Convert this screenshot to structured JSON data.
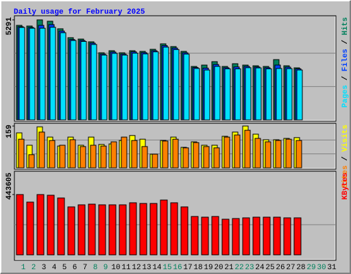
{
  "chart_data": [
    {
      "type": "bar",
      "title": "Daily usage for February 2025",
      "ylim": [
        0,
        5291
      ],
      "yticks": [
        5291
      ],
      "series": [
        {
          "name": "Hits",
          "color": "#00805c",
          "values": [
            5001,
            4965,
            5291,
            5219,
            4820,
            4349,
            4276,
            4131,
            3551,
            3660,
            3551,
            3660,
            3624,
            3733,
            4023,
            3878,
            3624,
            2827,
            2899,
            3080,
            2827,
            2972,
            2899,
            2863,
            2827,
            3189,
            2863,
            2754,
            null,
            null,
            null
          ]
        },
        {
          "name": "Files",
          "color": "#0040ff",
          "values": [
            4930,
            4890,
            5000,
            5040,
            4700,
            4250,
            4200,
            4060,
            3480,
            3590,
            3480,
            3600,
            3560,
            3660,
            3930,
            3800,
            3550,
            2770,
            2740,
            2930,
            2760,
            2800,
            2830,
            2800,
            2760,
            2900,
            2790,
            2700,
            null,
            null,
            null
          ]
        },
        {
          "name": "Pages",
          "color": "#00e0ff",
          "values": [
            4890,
            4850,
            4850,
            4900,
            4610,
            4200,
            4150,
            3990,
            3430,
            3520,
            3430,
            3530,
            3490,
            3600,
            3850,
            3720,
            3480,
            2720,
            2640,
            2830,
            2700,
            2700,
            2760,
            2750,
            2700,
            2720,
            2710,
            2640,
            null,
            null,
            null
          ]
        }
      ]
    },
    {
      "type": "bar",
      "ylim": [
        0,
        159
      ],
      "yticks": [
        159
      ],
      "series": [
        {
          "name": "Visits",
          "color": "#ffff00",
          "values": [
            133,
            86,
            156,
            117,
            83,
            117,
            86,
            117,
            89,
            91,
            104,
            123,
            109,
            52,
            104,
            117,
            78,
            99,
            86,
            86,
            120,
            136,
            159,
            128,
            107,
            107,
            112,
            115,
            null,
            null,
            null
          ]
        },
        {
          "name": "Sites",
          "color": "#ff8000",
          "values": [
            109,
            50,
            136,
            104,
            86,
            107,
            81,
            86,
            83,
            99,
            117,
            104,
            81,
            52,
            102,
            109,
            76,
            96,
            81,
            76,
            117,
            125,
            143,
            112,
            99,
            104,
            109,
            104,
            null,
            null,
            null
          ]
        }
      ]
    },
    {
      "type": "bar",
      "ylim": [
        0,
        443605
      ],
      "yticks": [
        443605
      ],
      "categories": [
        "1",
        "2",
        "3",
        "4",
        "5",
        "6",
        "7",
        "8",
        "9",
        "10",
        "11",
        "12",
        "13",
        "14",
        "15",
        "16",
        "17",
        "18",
        "19",
        "20",
        "21",
        "22",
        "23",
        "24",
        "25",
        "26",
        "27",
        "28",
        "29",
        "30",
        "31"
      ],
      "category_colors": [
        "#00805c",
        "#00805c",
        "#000000",
        "#000000",
        "#000000",
        "#000000",
        "#000000",
        "#00805c",
        "#00805c",
        "#000000",
        "#000000",
        "#000000",
        "#000000",
        "#000000",
        "#00805c",
        "#00805c",
        "#000000",
        "#000000",
        "#000000",
        "#000000",
        "#000000",
        "#00805c",
        "#00805c",
        "#000000",
        "#000000",
        "#000000",
        "#000000",
        "#000000",
        "#00805c",
        "#00805c",
        "#000000"
      ],
      "series": [
        {
          "name": "KBytes",
          "color": "#ff0000",
          "values": [
            443605,
            388160,
            443605,
            438570,
            418400,
            352870,
            367990,
            373030,
            367990,
            367990,
            367990,
            383120,
            378080,
            378080,
            403280,
            383120,
            352870,
            282300,
            277260,
            282300,
            262130,
            267170,
            272210,
            277260,
            277260,
            277260,
            272210,
            272210,
            null,
            null,
            null
          ]
        }
      ]
    }
  ]
}
